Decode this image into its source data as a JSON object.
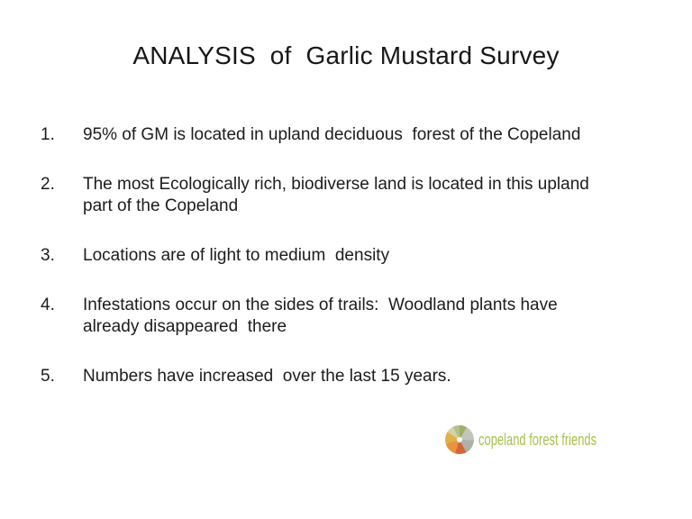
{
  "slide": {
    "title": "ANALYSIS  of  Garlic Mustard Survey",
    "items": [
      {
        "number": "1.",
        "lines": [
          "95% of GM is located in upland deciduous  forest of the Copeland"
        ]
      },
      {
        "number": "2.",
        "lines": [
          "The most Ecologically rich, biodiverse land is located in this upland",
          "part of the Copeland"
        ]
      },
      {
        "number": "3.",
        "lines": [
          "Locations are of light to medium  density"
        ]
      },
      {
        "number": "4.",
        "lines": [
          "Infestations occur on the sides of trails:  Woodland plants have",
          "already disappeared  there"
        ]
      },
      {
        "number": "5.",
        "lines": [
          "Numbers have increased  over the last 15 years."
        ]
      }
    ],
    "logo": {
      "text": "copeland forest friends",
      "text_color": "#a6c14f",
      "icon": "leaf-wheel-icon",
      "icon_colors": [
        "#9fae66",
        "#c2c5bd",
        "#aeb1a9",
        "#d2653e",
        "#e8943f",
        "#e2b149",
        "#d6d2a8",
        "#b3bf8b"
      ]
    },
    "colors": {
      "background": "#ffffff",
      "text": "#1c1c1c"
    }
  }
}
